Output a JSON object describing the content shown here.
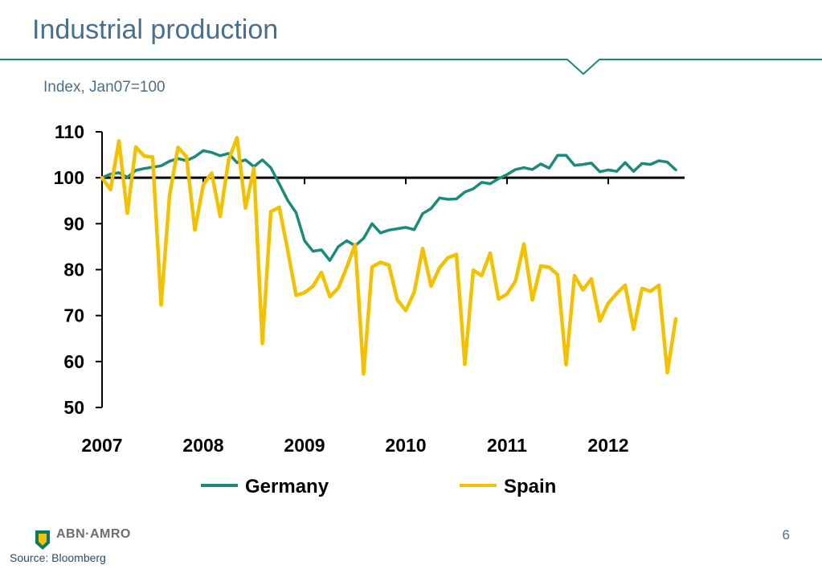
{
  "slide": {
    "title": "Industrial production",
    "page_number": "6",
    "source": "Source: Bloomberg",
    "logo_text": "ABN·AMRO",
    "colors": {
      "header_line": "#1a8a7a",
      "title": "#4a6f8a"
    }
  },
  "chart_data": {
    "type": "line",
    "subtitle": "Index, Jan07=100",
    "x_tick_labels": [
      "2007",
      "2008",
      "2009",
      "2010",
      "2011",
      "2012"
    ],
    "y_tick_labels": [
      "50",
      "60",
      "70",
      "80",
      "90",
      "100",
      "110"
    ],
    "ylim": [
      50,
      110
    ],
    "xlim": [
      2007.0,
      2012.75
    ],
    "reference_line": 100,
    "legend_position": "bottom",
    "grid": false,
    "series": [
      {
        "name": "Germany",
        "color": "#1a8a7a",
        "start": 2007.0,
        "step_months": 1,
        "values": [
          100.0,
          100.8,
          101.1,
          100.1,
          101.6,
          102.0,
          102.3,
          102.6,
          103.6,
          104.2,
          103.7,
          104.6,
          105.9,
          105.5,
          104.8,
          105.3,
          103.3,
          103.9,
          102.4,
          103.9,
          102.2,
          98.7,
          95.1,
          92.4,
          86.3,
          84.0,
          84.3,
          82.0,
          85.0,
          86.3,
          85.2,
          86.8,
          90.0,
          88.0,
          88.6,
          88.9,
          89.2,
          88.7,
          92.2,
          93.3,
          95.6,
          95.3,
          95.4,
          96.9,
          97.6,
          99.0,
          98.7,
          99.8,
          100.7,
          101.8,
          102.2,
          101.8,
          103.0,
          102.1,
          104.9,
          104.9,
          102.7,
          102.9,
          103.2,
          101.3,
          101.7,
          101.4,
          103.3,
          101.4,
          103.1,
          102.9,
          103.7,
          103.4,
          101.7
        ]
      },
      {
        "name": "Spain",
        "color": "#f2c100",
        "start": 2007.0,
        "step_months": 1,
        "values": [
          100.0,
          97.4,
          108.0,
          92.3,
          106.7,
          104.7,
          104.5,
          72.3,
          96.1,
          106.6,
          104.6,
          88.6,
          98.5,
          101.0,
          91.6,
          103.9,
          108.7,
          93.4,
          102.1,
          63.9,
          92.6,
          93.6,
          84.3,
          74.4,
          75.0,
          76.4,
          79.4,
          74.1,
          76.0,
          80.5,
          85.5,
          57.3,
          80.6,
          81.6,
          81.0,
          73.4,
          71.1,
          75.1,
          84.6,
          76.4,
          80.4,
          82.6,
          83.3,
          59.4,
          79.9,
          78.7,
          83.6,
          73.6,
          74.7,
          77.5,
          85.6,
          73.4,
          80.8,
          80.5,
          78.9,
          59.3,
          78.7,
          75.6,
          78.0,
          68.8,
          72.7,
          74.8,
          76.6,
          67.0,
          75.9,
          75.3,
          76.6,
          57.6,
          69.3
        ]
      }
    ]
  }
}
